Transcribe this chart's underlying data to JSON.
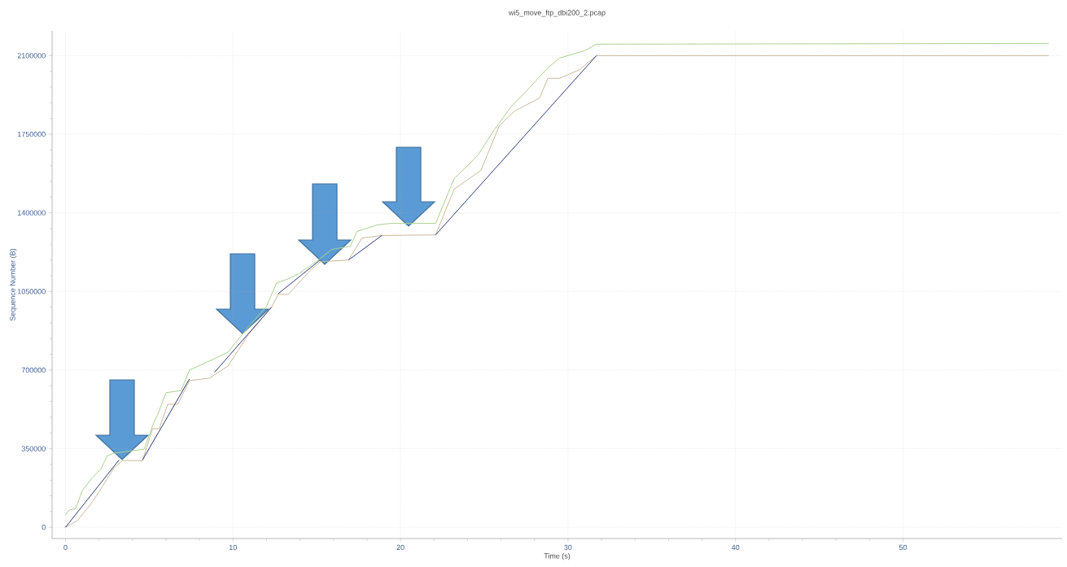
{
  "chart_data": {
    "type": "line",
    "title": "wi5_move_ftp_dbi200_2.pcap",
    "xlabel": "Time (s)",
    "ylabel": "Sequence Number (B)",
    "xlim": [
      -0.8,
      59.5
    ],
    "ylim": [
      -50000,
      2210000
    ],
    "xticks": [
      0,
      10,
      20,
      30,
      40,
      50
    ],
    "yticks": [
      0,
      350000,
      700000,
      1050000,
      1400000,
      1750000,
      2100000
    ],
    "grid": true,
    "line_style": "solid",
    "series": [
      {
        "color": "#a9d18e",
        "x": [
          0,
          0.2,
          0.6,
          1.0,
          1.6,
          2.1,
          2.5,
          2.9,
          4.7,
          5.2,
          5.5,
          6.0,
          6.9,
          7.4,
          8.7,
          9.7,
          10.8,
          12.0,
          12.6,
          13.3,
          13.9,
          15.1,
          15.9,
          17.0,
          17.4,
          18.6,
          19.4,
          22.1,
          23.2,
          24.6,
          25.6,
          26.6,
          27.4,
          28.8,
          29.5,
          31.0,
          31.7,
          58.7
        ],
        "values": [
          54000,
          76000,
          83000,
          163000,
          221000,
          258000,
          319000,
          330000,
          348000,
          453000,
          501000,
          599000,
          609000,
          700000,
          744000,
          780000,
          881000,
          983000,
          1088000,
          1106000,
          1128000,
          1190000,
          1237000,
          1251000,
          1317000,
          1346000,
          1353000,
          1353000,
          1552000,
          1654000,
          1770000,
          1872000,
          1933000,
          2046000,
          2089000,
          2122000,
          2151000,
          2154000
        ]
      },
      {
        "color": "#c9b99b",
        "x": [
          0,
          0.7,
          1.5,
          2.2,
          2.9,
          3.4,
          4.6,
          5.2,
          5.6,
          6.1,
          6.7,
          7.4,
          8.6,
          9.7,
          10.9,
          12.3,
          12.7,
          13.3,
          14.6,
          15.2,
          16.9,
          17.7,
          18.9,
          22.1,
          23.2,
          24.8,
          25.9,
          26.8,
          28.3,
          28.8,
          29.5,
          30.7,
          31.7,
          58.7
        ],
        "values": [
          0,
          29000,
          102000,
          181000,
          265000,
          297000,
          297000,
          439000,
          439000,
          548000,
          548000,
          653000,
          664000,
          718000,
          856000,
          979000,
          1037000,
          1037000,
          1143000,
          1182000,
          1190000,
          1288000,
          1299000,
          1302000,
          1505000,
          1589000,
          1788000,
          1853000,
          1911000,
          1999000,
          1999000,
          2038000,
          2100000,
          2100000
        ]
      },
      {
        "color": "#2e3a7a",
        "x": [
          0,
          3.2
        ],
        "values": [
          0,
          300000
        ]
      },
      {
        "color": "#2e3a7a",
        "x": [
          4.6,
          7.4
        ],
        "values": [
          300000,
          660000
        ]
      },
      {
        "color": "#2e3a7a",
        "x": [
          8.9,
          12.3
        ],
        "values": [
          690000,
          980000
        ]
      },
      {
        "color": "#2e3a7a",
        "x": [
          12.7,
          15.2
        ],
        "values": [
          1040000,
          1190000
        ]
      },
      {
        "color": "#2e3a7a",
        "x": [
          16.9,
          18.9
        ],
        "values": [
          1190000,
          1300000
        ]
      },
      {
        "color": "#2e3a7a",
        "x": [
          22.1,
          31.7
        ],
        "values": [
          1302000,
          2100000
        ]
      }
    ]
  }
}
